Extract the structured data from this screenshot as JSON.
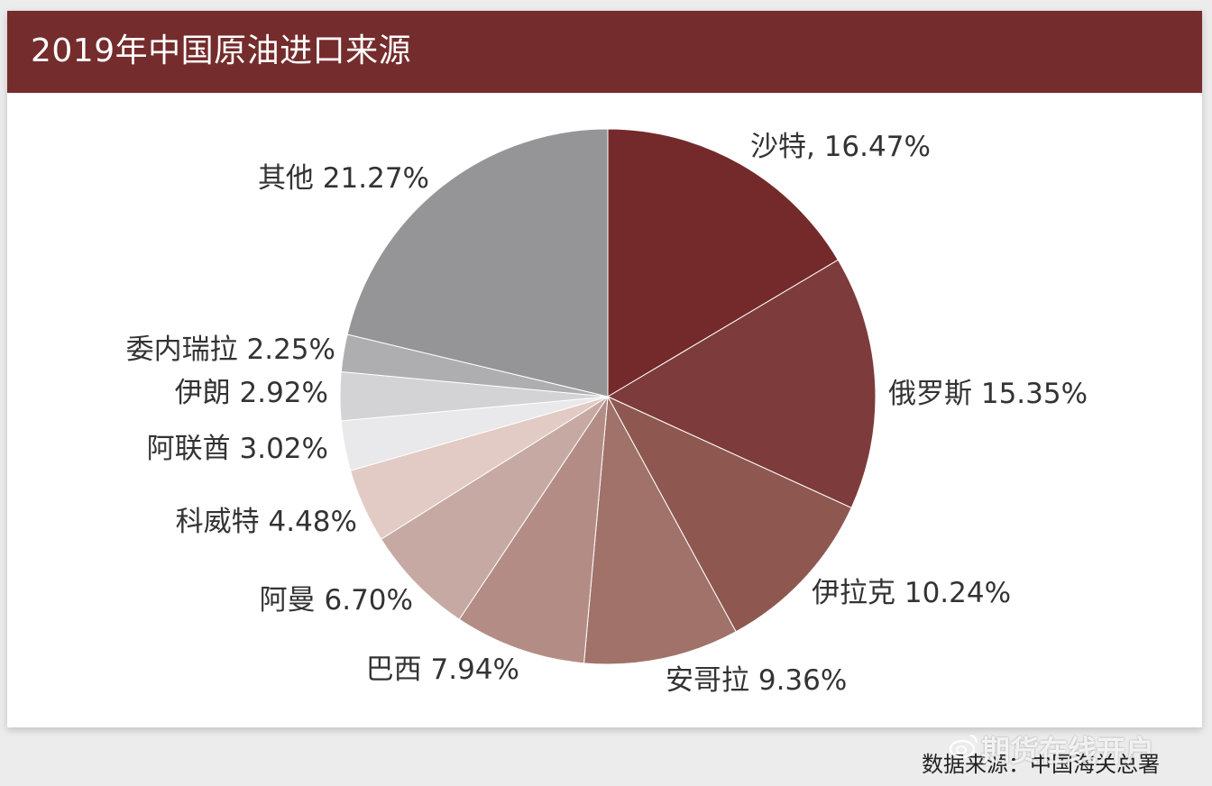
{
  "header": {
    "title": "2019年中国原油进口来源"
  },
  "chart_data": {
    "type": "pie",
    "title": "2019年中国原油进口来源",
    "slices": [
      {
        "name": "沙特",
        "value": 16.47,
        "label": "沙特, 16.47%",
        "color": "#742a2b"
      },
      {
        "name": "俄罗斯",
        "value": 15.35,
        "label": "俄罗斯 15.35%",
        "color": "#7e3b3b"
      },
      {
        "name": "伊拉克",
        "value": 10.24,
        "label": "伊拉克 10.24%",
        "color": "#8e5850"
      },
      {
        "name": "安哥拉",
        "value": 9.36,
        "label": "安哥拉 9.36%",
        "color": "#a0726a"
      },
      {
        "name": "巴西",
        "value": 7.94,
        "label": "巴西 7.94%",
        "color": "#b38d85"
      },
      {
        "name": "阿曼",
        "value": 6.7,
        "label": "阿曼 6.70%",
        "color": "#c6a9a3"
      },
      {
        "name": "科威特",
        "value": 4.48,
        "label": "科威特 4.48%",
        "color": "#e2cbc5"
      },
      {
        "name": "阿联酋",
        "value": 3.02,
        "label": "阿联酋 3.02%",
        "color": "#e9e8ea"
      },
      {
        "name": "伊朗",
        "value": 2.92,
        "label": "伊朗 2.92%",
        "color": "#d3d2d4"
      },
      {
        "name": "委内瑞拉",
        "value": 2.25,
        "label": "委内瑞拉 2.25%",
        "color": "#aeadb0"
      },
      {
        "name": "其他",
        "value": 21.27,
        "label": "其他 21.27%",
        "color": "#959496"
      }
    ]
  },
  "footer": {
    "source": "数据来源：中国海关总署",
    "watermark": "期货在线开户"
  }
}
